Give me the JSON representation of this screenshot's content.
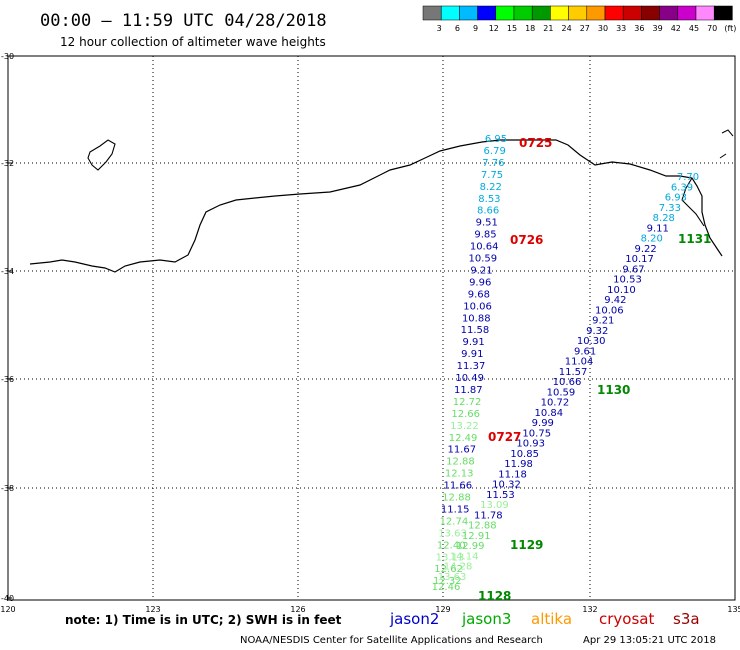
{
  "header": {
    "title": "00:00 – 11:59 UTC 04/28/2018",
    "subtitle": "12 hour collection of altimeter wave heights"
  },
  "colorbar": {
    "labels": [
      "3",
      "6",
      "9",
      "12",
      "15",
      "18",
      "21",
      "24",
      "27",
      "30",
      "33",
      "36",
      "39",
      "42",
      "45",
      "70",
      "(ft)"
    ],
    "colors": [
      "#777777",
      "#00ffff",
      "#00bbff",
      "#0000ff",
      "#00ff00",
      "#00cc00",
      "#009900",
      "#ffff00",
      "#ffcc00",
      "#ff9900",
      "#ff0000",
      "#cc0000",
      "#880000",
      "#880088",
      "#cc00cc",
      "#ff88ff",
      "#000000"
    ]
  },
  "axes": {
    "lat_labels": [
      "-30",
      "-32",
      "-34",
      "-36",
      "-38",
      "-40"
    ],
    "lon_labels": [
      "120",
      "123",
      "126",
      "129",
      "132",
      "135"
    ]
  },
  "track_colors": {
    "cyan": "#00aadd",
    "navy": "#0000aa",
    "green": "#66dd66",
    "light_green": "#99ee99",
    "red": "#dd0000",
    "dark_green": "#008800"
  },
  "tracks": {
    "track_0725": {
      "time": "0725",
      "heights": [
        "6.95",
        "6.79",
        "7.76",
        "7.75",
        "8.22",
        "8.53",
        "8.66",
        "9.51",
        "9.85",
        "10.64",
        "10.59",
        "9.21",
        "9.96",
        "9.68",
        "10.06",
        "10.88",
        "11.58",
        "9.91",
        "9.91",
        "11.37",
        "10.49",
        "11.87",
        "12.72",
        "12.66",
        "13.22",
        "12.49",
        "11.67",
        "12.88",
        "12.13",
        "11.66",
        "12.88",
        "11.15",
        "12.74",
        "13.63",
        "12.40",
        "13.13",
        "12.62",
        "12.32"
      ]
    },
    "track_1131": {
      "time": "1131",
      "heights": [
        "7.70",
        "6.39",
        "6.93",
        "7.33",
        "8.28",
        "9.11",
        "8.20",
        "9.22",
        "10.17",
        "9.67",
        "10.53",
        "10.10",
        "9.42",
        "10.06",
        "9.21",
        "9.32",
        "10.30",
        "9.61",
        "11.04",
        "11.57",
        "10.66",
        "10.59",
        "10.72",
        "10.84",
        "9.99",
        "10.75",
        "10.93",
        "10.85",
        "11.98",
        "11.18",
        "10.32",
        "11.53",
        "13.09",
        "11.78",
        "12.88",
        "12.91",
        "12.99",
        "14.14",
        "14.28",
        "13.63",
        "12.46"
      ]
    },
    "times_extra": [
      "0726",
      "0727",
      "1130",
      "1129",
      "1128"
    ]
  },
  "note": "note: 1) Time is in UTC; 2) SWH is in feet",
  "satellites": [
    {
      "name": "jason2",
      "color": "#0000cc"
    },
    {
      "name": "jason3",
      "color": "#00aa00"
    },
    {
      "name": "altika",
      "color": "#ff9900"
    },
    {
      "name": "cryosat",
      "color": "#cc0000"
    },
    {
      "name": "s3a",
      "color": "#990000"
    }
  ],
  "footer": {
    "source": "NOAA/NESDIS Center for Satellite Applications and Research",
    "timestamp": "Apr 29 13:05:21 UTC 2018"
  }
}
